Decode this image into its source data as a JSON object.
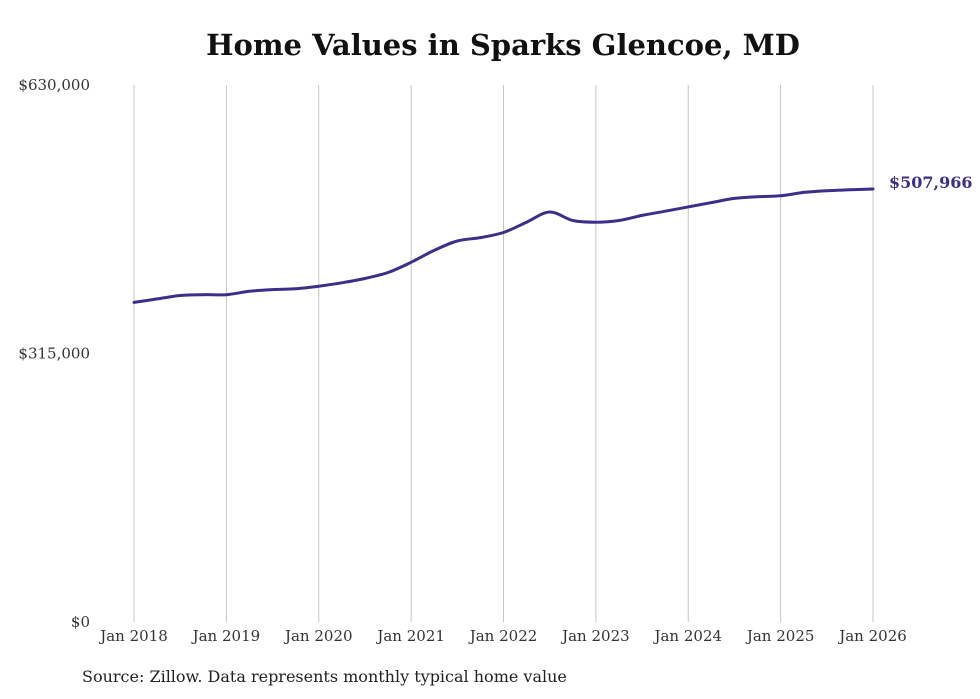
{
  "chart_data": {
    "type": "line",
    "title": "Home Values in Sparks Glencoe, MD",
    "xlabel": "",
    "ylabel": "",
    "ylim": [
      0,
      630000
    ],
    "y_ticks": [
      0,
      315000,
      630000
    ],
    "y_tick_labels": [
      "$0",
      "$315,000",
      "$630,000"
    ],
    "x_ticks": [
      2018,
      2019,
      2020,
      2021,
      2022,
      2023,
      2024,
      2025,
      2026
    ],
    "x_tick_labels": [
      "Jan 2018",
      "Jan 2019",
      "Jan 2020",
      "Jan 2021",
      "Jan 2022",
      "Jan 2023",
      "Jan 2024",
      "Jan 2025",
      "Jan 2026"
    ],
    "xlim": [
      2018,
      2026
    ],
    "grid": "vertical",
    "series": [
      {
        "name": "Typical home value",
        "color": "#3b3089",
        "x": [
          2018.0,
          2018.25,
          2018.5,
          2018.75,
          2019.0,
          2019.25,
          2019.5,
          2019.75,
          2020.0,
          2020.25,
          2020.5,
          2020.75,
          2021.0,
          2021.25,
          2021.5,
          2021.75,
          2022.0,
          2022.25,
          2022.5,
          2022.75,
          2023.0,
          2023.25,
          2023.5,
          2023.75,
          2024.0,
          2024.25,
          2024.5,
          2024.75,
          2025.0,
          2025.25,
          2025.5,
          2025.75,
          2026.0
        ],
        "values": [
          375000,
          379000,
          383000,
          384000,
          384000,
          388000,
          390000,
          391000,
          394000,
          398000,
          403000,
          410000,
          422000,
          436000,
          447000,
          451000,
          457000,
          469000,
          481000,
          471000,
          469000,
          471000,
          477000,
          482000,
          487000,
          492000,
          497000,
          499000,
          500000,
          504000,
          506000,
          507000,
          507966
        ]
      }
    ],
    "end_label": "$507,966"
  },
  "source_note": "Source: Zillow. Data represents monthly typical home value"
}
